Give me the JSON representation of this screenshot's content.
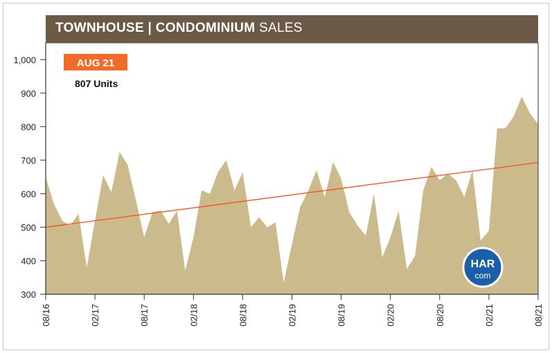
{
  "header": {
    "title_bold": "TOWNHOUSE | CONDOMINIUM",
    "title_light": "SALES"
  },
  "badge": {
    "label": "AUG 21",
    "value": "807 Units"
  },
  "logo": {
    "line1": "HAR",
    "line2": "com"
  },
  "colors": {
    "area": "#cbbb8c",
    "trend": "#ff4d1a",
    "header": "#6b5a45",
    "badge": "#f36b2a",
    "logo": "#1a5fa8"
  },
  "chart_data": {
    "type": "area",
    "title": "TOWNHOUSE | CONDOMINIUM SALES",
    "ylim": [
      300,
      1050
    ],
    "yticks": [
      300,
      400,
      500,
      600,
      700,
      800,
      900,
      1000
    ],
    "ytick_labels": [
      "300",
      "400",
      "500",
      "600",
      "700",
      "800",
      "900",
      "1,000"
    ],
    "xtick_labels": [
      "08/16",
      "02/17",
      "08/17",
      "02/18",
      "08/18",
      "02/19",
      "08/19",
      "02/20",
      "08/20",
      "02/21",
      "08/21"
    ],
    "series": [
      {
        "values": [
          650,
          570,
          520,
          505,
          540,
          380,
          520,
          655,
          605,
          725,
          685,
          580,
          470,
          545,
          550,
          510,
          550,
          370,
          470,
          610,
          600,
          665,
          700,
          610,
          665,
          500,
          530,
          500,
          515,
          335,
          450,
          560,
          610,
          670,
          590,
          695,
          645,
          545,
          505,
          475,
          600,
          410,
          470,
          550,
          375,
          415,
          610,
          680,
          640,
          660,
          640,
          590,
          670,
          460,
          490,
          795,
          795,
          830,
          890,
          840,
          807
        ]
      }
    ],
    "trendline": {
      "start": 500,
      "end": 693
    }
  }
}
